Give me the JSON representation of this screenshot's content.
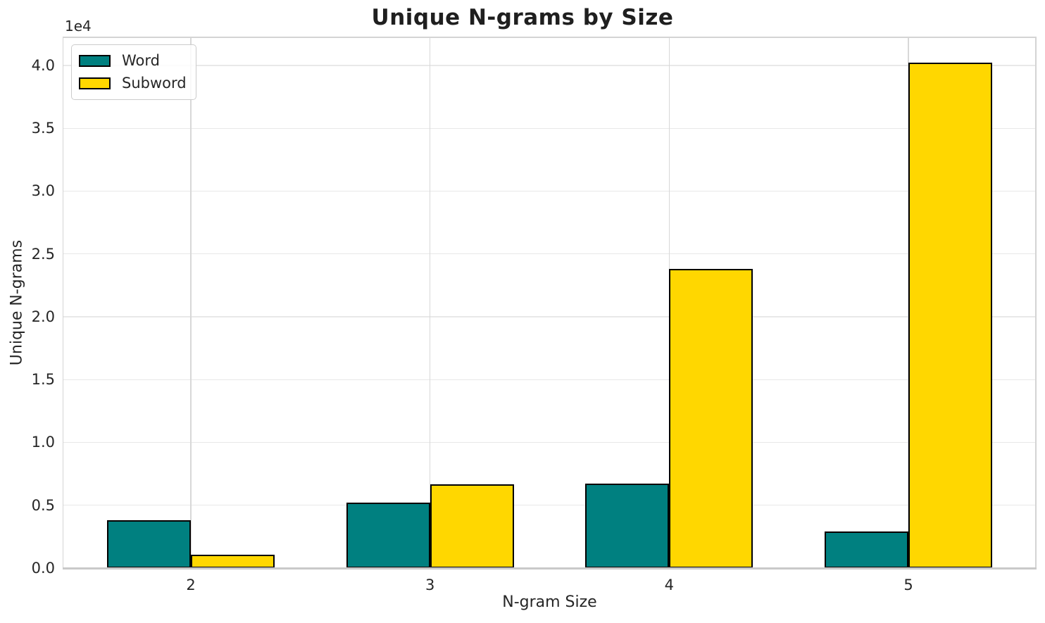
{
  "chart_data": {
    "type": "bar",
    "title": "Unique N-grams by Size",
    "xlabel": "N-gram Size",
    "ylabel": "Unique N-grams",
    "y_offset_text": "1e4",
    "categories": [
      "2",
      "3",
      "4",
      "5"
    ],
    "series": [
      {
        "name": "Word",
        "color": "#008080",
        "values": [
          3800,
          5200,
          6700,
          2900
        ]
      },
      {
        "name": "Subword",
        "color": "#FFD700",
        "values": [
          1050,
          6650,
          23800,
          40200
        ]
      }
    ],
    "bar_edge_color": "#000000",
    "bar_width_fraction": 0.35,
    "ylim": [
      0,
      42240
    ],
    "ytick_step": 5000,
    "ytick_labels": [
      "0.0",
      "0.5",
      "1.0",
      "1.5",
      "2.0",
      "2.5",
      "3.0",
      "3.5",
      "4.0"
    ],
    "grid": "on",
    "legend_position": "upper left",
    "colors": {
      "background": "#ffffff",
      "grid_horizontal": "#e8e8e8",
      "grid_vertical": "#d8d8d8",
      "spine": "#c9c9c9",
      "text": "#262626"
    }
  }
}
